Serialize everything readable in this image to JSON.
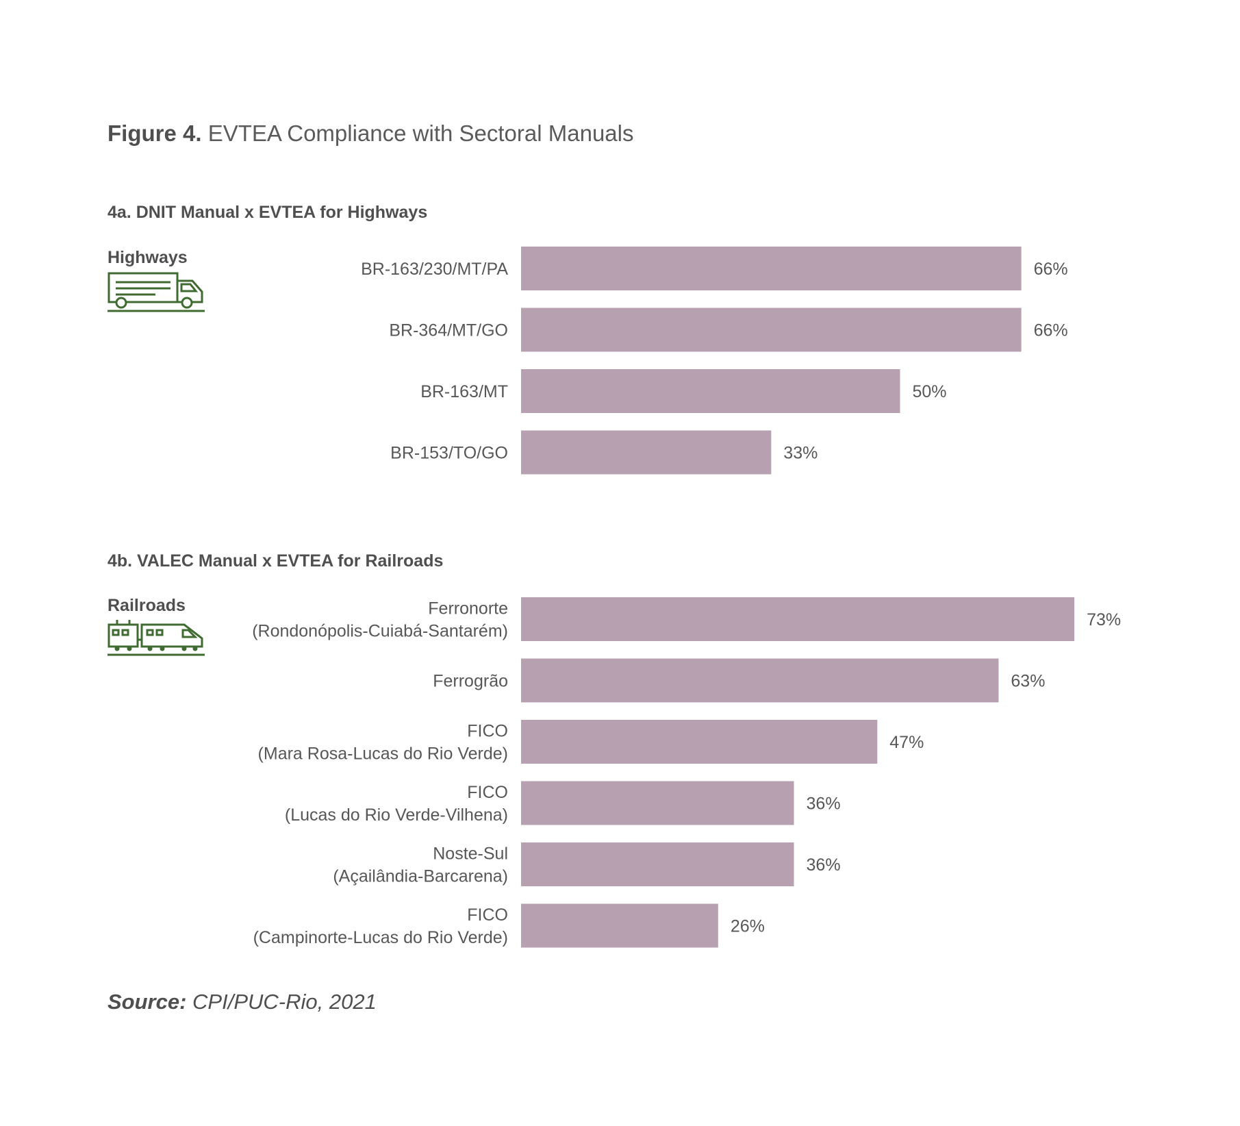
{
  "figure": {
    "number": "Figure 4.",
    "title": "EVTEA Compliance with Sectoral Manuals"
  },
  "source": {
    "label": "Source:",
    "text": "CPI/PUC-Rio, 2021"
  },
  "colors": {
    "bar": "#b7a0b0",
    "icon": "#3f6b30"
  },
  "chart_data": [
    {
      "type": "bar",
      "orientation": "horizontal",
      "title": "4a. DNIT Manual x EVTEA for Highways",
      "category_label": "Highways",
      "icon": "truck-icon",
      "categories": [
        [
          "BR-163/230/MT/PA"
        ],
        [
          "BR-364/MT/GO"
        ],
        [
          "BR-163/MT"
        ],
        [
          "BR-153/TO/GO"
        ]
      ],
      "values": [
        66,
        66,
        50,
        33
      ],
      "value_labels": [
        "66%",
        "66%",
        "50%",
        "33%"
      ],
      "unit": "%",
      "grid": false,
      "legend": false
    },
    {
      "type": "bar",
      "orientation": "horizontal",
      "title": "4b. VALEC Manual x EVTEA for Railroads",
      "category_label": "Railroads",
      "icon": "train-icon",
      "categories": [
        [
          "Ferronorte",
          "(Rondonópolis-Cuiabá-Santarém)"
        ],
        [
          "Ferrogrão"
        ],
        [
          "FICO",
          "(Mara Rosa-Lucas do Rio Verde)"
        ],
        [
          "FICO",
          "(Lucas do Rio Verde-Vilhena)"
        ],
        [
          "Noste-Sul",
          "(Açailândia-Barcarena)"
        ],
        [
          "FICO",
          "(Campinorte-Lucas do Rio Verde)"
        ]
      ],
      "values": [
        73,
        63,
        47,
        36,
        36,
        26
      ],
      "value_labels": [
        "73%",
        "63%",
        "47%",
        "36%",
        "36%",
        "26%"
      ],
      "unit": "%",
      "grid": false,
      "legend": false
    }
  ]
}
